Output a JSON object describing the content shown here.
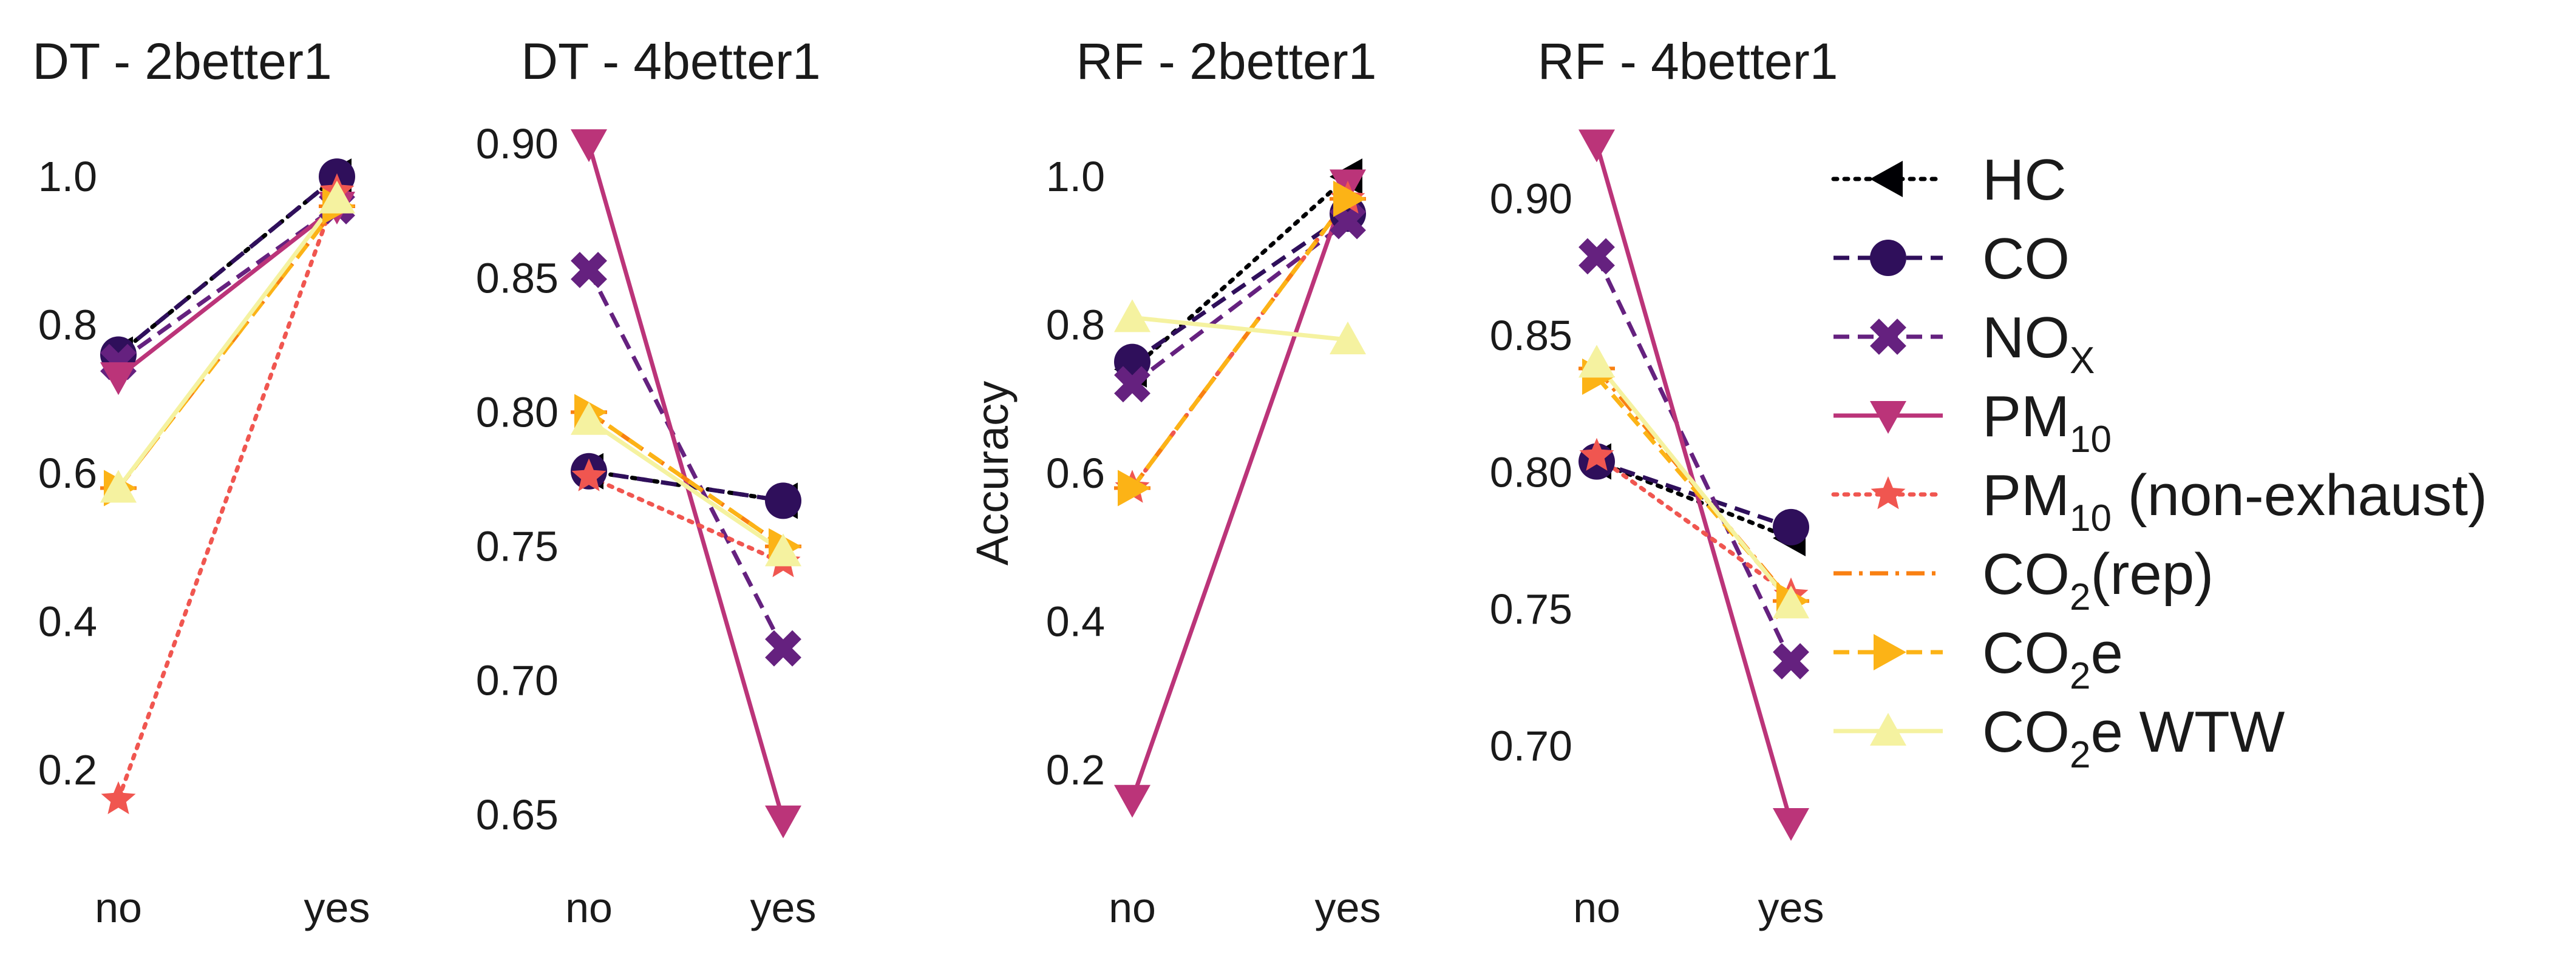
{
  "chart_data": [
    {
      "type": "line",
      "title": "DT - 2better1",
      "x": [
        "no",
        "yes"
      ],
      "ylabel": "",
      "yticks": [
        "0.2",
        "0.4",
        "0.6",
        "0.8",
        "1.0"
      ],
      "ylim": [
        0.15,
        1.05
      ],
      "series": [
        {
          "name": "HC",
          "values": [
            0.76,
            1.0
          ]
        },
        {
          "name": "CO",
          "values": [
            0.76,
            1.0
          ]
        },
        {
          "name": "NOX",
          "values": [
            0.75,
            0.96
          ]
        },
        {
          "name": "PM10",
          "values": [
            0.73,
            0.96
          ]
        },
        {
          "name": "PM10 (non-exhaust)",
          "values": [
            0.16,
            0.98
          ]
        },
        {
          "name": "CO2(rep)",
          "values": [
            0.58,
            0.96
          ]
        },
        {
          "name": "CO2e",
          "values": [
            0.58,
            0.96
          ]
        },
        {
          "name": "CO2e WTW",
          "values": [
            0.58,
            0.97
          ]
        }
      ]
    },
    {
      "type": "line",
      "title": "DT - 4better1",
      "x": [
        "no",
        "yes"
      ],
      "ylabel": "",
      "yticks": [
        "0.65",
        "0.70",
        "0.75",
        "0.80",
        "0.85",
        "0.90"
      ],
      "ylim": [
        0.645,
        0.905
      ],
      "series": [
        {
          "name": "HC",
          "values": [
            0.778,
            0.767
          ]
        },
        {
          "name": "CO",
          "values": [
            0.778,
            0.767
          ]
        },
        {
          "name": "NOX",
          "values": [
            0.853,
            0.712
          ]
        },
        {
          "name": "PM10",
          "values": [
            0.9,
            0.648
          ]
        },
        {
          "name": "PM10 (non-exhaust)",
          "values": [
            0.776,
            0.744
          ]
        },
        {
          "name": "CO2(rep)",
          "values": [
            0.8,
            0.75
          ]
        },
        {
          "name": "CO2e",
          "values": [
            0.8,
            0.75
          ]
        },
        {
          "name": "CO2e WTW",
          "values": [
            0.797,
            0.748
          ]
        }
      ]
    },
    {
      "type": "line",
      "title": "RF - 2better1",
      "x": [
        "no",
        "yes"
      ],
      "ylabel": "Accuracy",
      "yticks": [
        "0.2",
        "0.4",
        "0.6",
        "0.8",
        "1.0"
      ],
      "ylim": [
        0.15,
        1.05
      ],
      "series": [
        {
          "name": "HC",
          "values": [
            0.74,
            1.0
          ]
        },
        {
          "name": "CO",
          "values": [
            0.75,
            0.95
          ]
        },
        {
          "name": "NOX",
          "values": [
            0.72,
            0.94
          ]
        },
        {
          "name": "PM10",
          "values": [
            0.16,
            0.99
          ]
        },
        {
          "name": "PM10 (non-exhaust)",
          "values": [
            0.58,
            0.97
          ]
        },
        {
          "name": "CO2(rep)",
          "values": [
            0.58,
            0.97
          ]
        },
        {
          "name": "CO2e",
          "values": [
            0.58,
            0.97
          ]
        },
        {
          "name": "CO2e WTW",
          "values": [
            0.81,
            0.78
          ]
        }
      ]
    },
    {
      "type": "line",
      "title": "RF - 4better1",
      "x": [
        "no",
        "yes"
      ],
      "ylabel": "",
      "yticks": [
        "0.70",
        "0.75",
        "0.80",
        "0.85",
        "0.90"
      ],
      "ylim": [
        0.67,
        0.925
      ],
      "series": [
        {
          "name": "HC",
          "values": [
            0.804,
            0.776
          ]
        },
        {
          "name": "CO",
          "values": [
            0.804,
            0.78
          ]
        },
        {
          "name": "NOX",
          "values": [
            0.879,
            0.731
          ]
        },
        {
          "name": "PM10",
          "values": [
            0.92,
            0.672
          ]
        },
        {
          "name": "PM10 (non-exhaust)",
          "values": [
            0.806,
            0.755
          ]
        },
        {
          "name": "CO2(rep)",
          "values": [
            0.838,
            0.753
          ]
        },
        {
          "name": "CO2e",
          "values": [
            0.835,
            0.753
          ]
        },
        {
          "name": "CO2e WTW",
          "values": [
            0.84,
            0.752
          ]
        }
      ]
    }
  ],
  "legend": {
    "position": "right",
    "entries": [
      {
        "key": "HC",
        "label": "HC",
        "sub": "",
        "suffix": "",
        "marker": "triangle-left",
        "dash": "dot",
        "color": "#000004"
      },
      {
        "key": "CO",
        "label": "CO",
        "sub": "",
        "suffix": "",
        "marker": "circle",
        "dash": "dash",
        "color": "#2f0f5b"
      },
      {
        "key": "NOX",
        "label": "NO",
        "sub": "X",
        "suffix": "",
        "marker": "x",
        "dash": "dash",
        "color": "#65217f"
      },
      {
        "key": "PM10",
        "label": "PM",
        "sub": "10",
        "suffix": "",
        "marker": "triangle-down",
        "dash": "solid",
        "color": "#bb3479"
      },
      {
        "key": "PM10 (non-exhaust)",
        "label": "PM",
        "sub": "10",
        "suffix": " (non-exhaust)",
        "marker": "star",
        "dash": "dot",
        "color": "#f05650"
      },
      {
        "key": "CO2(rep)",
        "label": "CO",
        "sub": "2",
        "suffix": "(rep)",
        "marker": "none",
        "dash": "dashdot",
        "color": "#f98012"
      },
      {
        "key": "CO2e",
        "label": "CO",
        "sub": "2",
        "suffix": "e",
        "marker": "triangle-right",
        "dash": "dash",
        "color": "#fcb316"
      },
      {
        "key": "CO2e WTW",
        "label": "CO",
        "sub": "2",
        "suffix": "e WTW",
        "marker": "triangle-up",
        "dash": "solid",
        "color": "#f5f2a0"
      }
    ]
  }
}
